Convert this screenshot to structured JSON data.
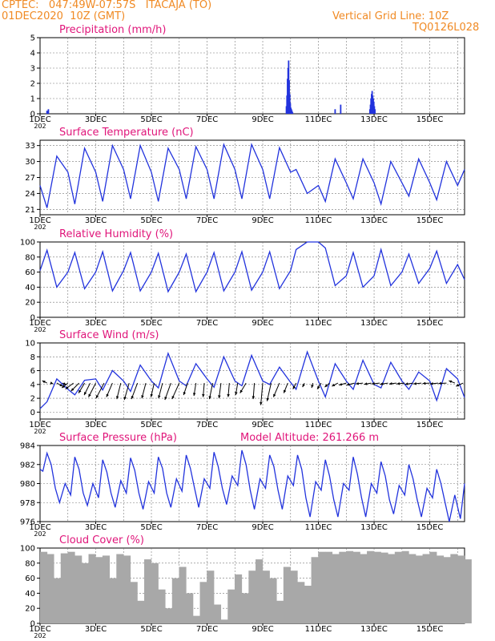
{
  "header": {
    "line1": "CPTEC:   047:49W-07:57S   ITACAJA (TO)",
    "line2": "01DEC2020  10Z (GMT)",
    "right1": "Vertical Grid Line: 10Z",
    "right2": "TQ0126L028"
  },
  "colors": {
    "header": "#f08a24",
    "title": "#e0157a",
    "line": "#2233dd",
    "bar": "#2233dd",
    "cloud": "#a8a8a8"
  },
  "x_ticks": [
    "1DEC",
    "3DEC",
    "5DEC",
    "7DEC",
    "9DEC",
    "11DEC",
    "13DEC",
    "15DEC"
  ],
  "x_sub": "202",
  "chart_data": [
    {
      "id": "precip",
      "type": "bar",
      "title": "Precipitation  (mm/h)",
      "ylim": [
        0,
        5
      ],
      "yticks": [
        "0",
        "1",
        "2",
        "3",
        "4",
        "5"
      ],
      "xlim_days": [
        1,
        16.25
      ],
      "x_day": [
        1.25,
        1.3,
        9.85,
        9.87,
        9.89,
        9.91,
        9.93,
        9.95,
        9.97,
        9.99,
        10.01,
        10.03,
        10.05,
        10.07,
        11.6,
        11.8,
        12.85,
        12.87,
        12.89,
        12.91,
        12.93,
        12.95,
        12.97,
        12.99,
        13.01,
        13.03
      ],
      "values": [
        0.2,
        0.3,
        0.5,
        1.2,
        2.3,
        3.0,
        3.5,
        2.2,
        1.3,
        0.7,
        0.4,
        0.3,
        0.2,
        0.1,
        0.3,
        0.6,
        0.3,
        0.6,
        1.0,
        1.3,
        1.5,
        1.2,
        1.0,
        0.8,
        0.5,
        0.3
      ]
    },
    {
      "id": "temp",
      "type": "line",
      "title": "Surface Temperature (nC)",
      "ylim": [
        20,
        34
      ],
      "yticks": [
        "21",
        "24",
        "27",
        "30",
        "33"
      ],
      "ytick_values": [
        21,
        24,
        27,
        30,
        33
      ],
      "x_day": [
        1,
        1.25,
        1.6,
        2,
        2.25,
        2.6,
        3,
        3.25,
        3.6,
        4,
        4.25,
        4.6,
        5,
        5.25,
        5.6,
        6,
        6.25,
        6.6,
        7,
        7.25,
        7.6,
        8,
        8.25,
        8.6,
        9,
        9.25,
        9.6,
        10,
        10.2,
        10.6,
        11,
        11.25,
        11.6,
        12,
        12.25,
        12.6,
        13,
        13.25,
        13.6,
        14,
        14.25,
        14.6,
        15,
        15.25,
        15.6,
        16,
        16.25
      ],
      "values": [
        25.5,
        21.3,
        31,
        28,
        22,
        32.5,
        28,
        22.5,
        33,
        28.5,
        23,
        33,
        28,
        22.5,
        32.5,
        28.5,
        23,
        32.8,
        28.5,
        23,
        33.2,
        28.5,
        23,
        33.2,
        28.5,
        23,
        32.6,
        28,
        28.5,
        24,
        25.5,
        22.5,
        30.5,
        26,
        23,
        30.5,
        26,
        22,
        30,
        26,
        23.5,
        30.5,
        26,
        22.8,
        30,
        25.5,
        28.5
      ]
    },
    {
      "id": "rh",
      "type": "line",
      "title": "Relative Humidity (%)",
      "ylim": [
        0,
        100
      ],
      "yticks": [
        "0",
        "20",
        "40",
        "60",
        "80",
        "100"
      ],
      "x_day": [
        1,
        1.25,
        1.6,
        2,
        2.25,
        2.6,
        3,
        3.25,
        3.6,
        4,
        4.25,
        4.6,
        5,
        5.25,
        5.6,
        6,
        6.25,
        6.6,
        7,
        7.25,
        7.6,
        8,
        8.25,
        8.6,
        9,
        9.25,
        9.6,
        10,
        10.2,
        10.6,
        11,
        11.25,
        11.6,
        12,
        12.25,
        12.6,
        13,
        13.25,
        13.6,
        14,
        14.25,
        14.6,
        15,
        15.25,
        15.6,
        16,
        16.25
      ],
      "values": [
        62,
        89,
        40,
        60,
        86,
        38,
        60,
        87,
        35,
        62,
        86,
        35,
        60,
        85,
        34,
        60,
        84,
        34,
        60,
        86,
        35,
        60,
        87,
        36,
        60,
        87,
        38,
        62,
        90,
        100,
        100,
        92,
        42,
        55,
        86,
        40,
        55,
        90,
        42,
        60,
        84,
        45,
        65,
        88,
        45,
        70,
        50
      ]
    },
    {
      "id": "wind",
      "type": "line",
      "title": "Surface Wind (m/s)",
      "ylim": [
        -1,
        10
      ],
      "yticks": [
        "0",
        "2",
        "4",
        "6",
        "8",
        "10"
      ],
      "ytick_values": [
        0,
        2,
        4,
        6,
        8,
        10
      ],
      "x_day": [
        1,
        1.25,
        1.6,
        2,
        2.25,
        2.6,
        3,
        3.25,
        3.6,
        4,
        4.25,
        4.6,
        5,
        5.25,
        5.6,
        6,
        6.25,
        6.6,
        7,
        7.25,
        7.6,
        8,
        8.25,
        8.6,
        9,
        9.25,
        9.6,
        10,
        10.2,
        10.6,
        11,
        11.25,
        11.6,
        12,
        12.25,
        12.6,
        13,
        13.25,
        13.6,
        14,
        14.25,
        14.6,
        15,
        15.25,
        15.6,
        16,
        16.25
      ],
      "values": [
        0.5,
        1.5,
        4.8,
        3.3,
        2.5,
        4.6,
        4.8,
        3.2,
        6.0,
        4.5,
        3.0,
        6.8,
        4.5,
        3.5,
        8.5,
        4.5,
        3.8,
        7.0,
        4.8,
        3.6,
        8.0,
        4.5,
        3.8,
        8.2,
        4.5,
        4.0,
        6.5,
        4.3,
        3.3,
        8.7,
        4.5,
        2.2,
        7.0,
        4.5,
        3.3,
        7.5,
        4.0,
        3.5,
        7.2,
        4.5,
        3.3,
        5.8,
        4.5,
        1.7,
        6.3,
        4.8,
        2.1
      ],
      "arrows_day": [
        1.25,
        1.4,
        1.6,
        1.8,
        2.0,
        2.2,
        2.4,
        2.6,
        2.8,
        3.0,
        3.3,
        3.6,
        3.9,
        4.2,
        4.5,
        4.8,
        5.1,
        5.4,
        5.7,
        6.0,
        6.3,
        6.6,
        6.9,
        7.2,
        7.5,
        7.8,
        8.1,
        8.4,
        8.7,
        9.0,
        9.3,
        9.6,
        9.9,
        10.2,
        10.5,
        10.8,
        11.1,
        11.4,
        11.7,
        12.0,
        12.3,
        12.6,
        12.9,
        13.2,
        13.5,
        13.8,
        14.1,
        14.4,
        14.7,
        15.0,
        15.3,
        15.6,
        15.9,
        16.2
      ],
      "arrows_u": [
        -1.2,
        0.5,
        1.5,
        1.0,
        -1.5,
        -2.0,
        -2.0,
        -1.5,
        -1.5,
        -1.8,
        -2.0,
        -1.5,
        -1.0,
        -1.2,
        -1.5,
        -1.0,
        -0.8,
        -1.0,
        -1.5,
        -1.8,
        -1.0,
        -0.5,
        -0.3,
        -0.8,
        -0.5,
        -0.3,
        -0.5,
        -1.5,
        -0.3,
        -0.5,
        -1.0,
        -1.5,
        -1.0,
        -0.8,
        -0.5,
        -0.3,
        -1.0,
        -1.2,
        -1.5,
        -1.8,
        -2.0,
        -1.8,
        -1.8,
        -2.0,
        -2.0,
        -1.8,
        -2.0,
        -2.0,
        -2.0,
        -1.8,
        -2.0,
        -2.0,
        -1.5,
        -1.8
      ],
      "arrows_v": [
        0.6,
        -0.2,
        -0.8,
        -0.4,
        -1.2,
        -1.5,
        -2.0,
        -2.5,
        -3.0,
        -3.5,
        -3.8,
        -3.5,
        -4.0,
        -4.2,
        -4.0,
        -3.8,
        -3.5,
        -3.8,
        -4.2,
        -4.0,
        -3.0,
        -3.2,
        -3.5,
        -4.0,
        -3.8,
        -3.5,
        -3.0,
        -2.5,
        -4.0,
        -5.5,
        -4.5,
        -3.5,
        -2.5,
        -1.5,
        -1.0,
        -1.2,
        -1.5,
        -1.0,
        -0.8,
        -0.5,
        -0.5,
        -0.2,
        -0.3,
        -0.2,
        -0.3,
        -0.2,
        -0.2,
        -0.3,
        -0.2,
        -0.1,
        -0.2,
        -0.1,
        0.6,
        -0.8
      ]
    },
    {
      "id": "press",
      "type": "line",
      "title": "Surface Pressure (hPa)",
      "extra_label": "Model Altitude: 261.266 m",
      "ylim": [
        976,
        984
      ],
      "yticks": [
        "976",
        "978",
        "980",
        "982",
        "984"
      ],
      "x_day": [
        1,
        1.1,
        1.25,
        1.4,
        1.55,
        1.7,
        1.9,
        2.1,
        2.25,
        2.4,
        2.55,
        2.7,
        2.9,
        3.1,
        3.25,
        3.4,
        3.55,
        3.7,
        3.9,
        4.1,
        4.25,
        4.4,
        4.55,
        4.7,
        4.9,
        5.1,
        5.25,
        5.4,
        5.55,
        5.7,
        5.9,
        6.1,
        6.25,
        6.4,
        6.55,
        6.7,
        6.9,
        7.1,
        7.25,
        7.4,
        7.55,
        7.7,
        7.9,
        8.1,
        8.25,
        8.4,
        8.55,
        8.7,
        8.9,
        9.1,
        9.25,
        9.4,
        9.55,
        9.7,
        9.9,
        10.1,
        10.25,
        10.4,
        10.55,
        10.7,
        10.9,
        11.1,
        11.25,
        11.4,
        11.55,
        11.7,
        11.9,
        12.1,
        12.25,
        12.4,
        12.55,
        12.7,
        12.9,
        13.1,
        13.25,
        13.4,
        13.55,
        13.7,
        13.9,
        14.1,
        14.25,
        14.4,
        14.55,
        14.7,
        14.9,
        15.1,
        15.25,
        15.4,
        15.55,
        15.7,
        15.9,
        16.1,
        16.25
      ],
      "values": [
        981.5,
        981.3,
        983.2,
        982.0,
        979.5,
        978.0,
        980.0,
        978.8,
        982.8,
        981.5,
        979.0,
        977.7,
        980.0,
        978.5,
        982.5,
        981.2,
        979.0,
        977.5,
        980.3,
        979.0,
        982.7,
        981.4,
        979.0,
        977.3,
        980.2,
        979.0,
        982.8,
        981.6,
        979.0,
        977.5,
        980.5,
        979.2,
        983.0,
        981.6,
        979.5,
        977.5,
        980.5,
        979.5,
        983.3,
        981.8,
        979.5,
        977.8,
        980.8,
        979.8,
        983.5,
        982.0,
        979.3,
        977.3,
        980.5,
        979.5,
        983.0,
        981.8,
        979.3,
        977.3,
        980.8,
        979.8,
        983.0,
        981.5,
        978.5,
        976.5,
        980.2,
        979.3,
        982.5,
        980.8,
        978.3,
        976.5,
        980.0,
        979.3,
        982.8,
        981.0,
        978.5,
        976.5,
        980.0,
        979.0,
        982.3,
        980.8,
        978.3,
        976.8,
        979.8,
        978.8,
        982.0,
        980.5,
        978.3,
        976.5,
        979.5,
        978.5,
        981.5,
        980.0,
        978.0,
        976.0,
        978.8,
        976.3,
        980.0
      ]
    },
    {
      "id": "cloud",
      "type": "bar",
      "title": "Cloud Cover (%)",
      "ylim": [
        0,
        100
      ],
      "yticks": [
        "0",
        "20",
        "40",
        "60",
        "80",
        "100"
      ],
      "x_day": [
        1,
        1.25,
        1.5,
        1.75,
        2,
        2.25,
        2.5,
        2.75,
        3,
        3.25,
        3.5,
        3.75,
        4,
        4.25,
        4.5,
        4.75,
        5,
        5.25,
        5.5,
        5.75,
        6,
        6.25,
        6.5,
        6.75,
        7,
        7.25,
        7.5,
        7.75,
        8,
        8.25,
        8.5,
        8.75,
        9,
        9.25,
        9.5,
        9.75,
        10,
        10.25,
        10.5,
        10.75,
        11,
        11.25,
        11.5,
        11.75,
        12,
        12.25,
        12.5,
        12.75,
        13,
        13.25,
        13.5,
        13.75,
        14,
        14.25,
        14.5,
        14.75,
        15,
        15.25,
        15.5,
        15.75,
        16,
        16.25
      ],
      "values": [
        95,
        92,
        60,
        93,
        95,
        90,
        80,
        92,
        88,
        90,
        60,
        92,
        90,
        55,
        30,
        85,
        80,
        45,
        20,
        60,
        75,
        40,
        10,
        55,
        70,
        25,
        5,
        45,
        65,
        40,
        70,
        85,
        70,
        60,
        30,
        75,
        70,
        55,
        50,
        88,
        95,
        95,
        92,
        95,
        96,
        95,
        92,
        96,
        95,
        94,
        92,
        95,
        96,
        92,
        90,
        92,
        95,
        90,
        88,
        92,
        90,
        85
      ]
    }
  ]
}
